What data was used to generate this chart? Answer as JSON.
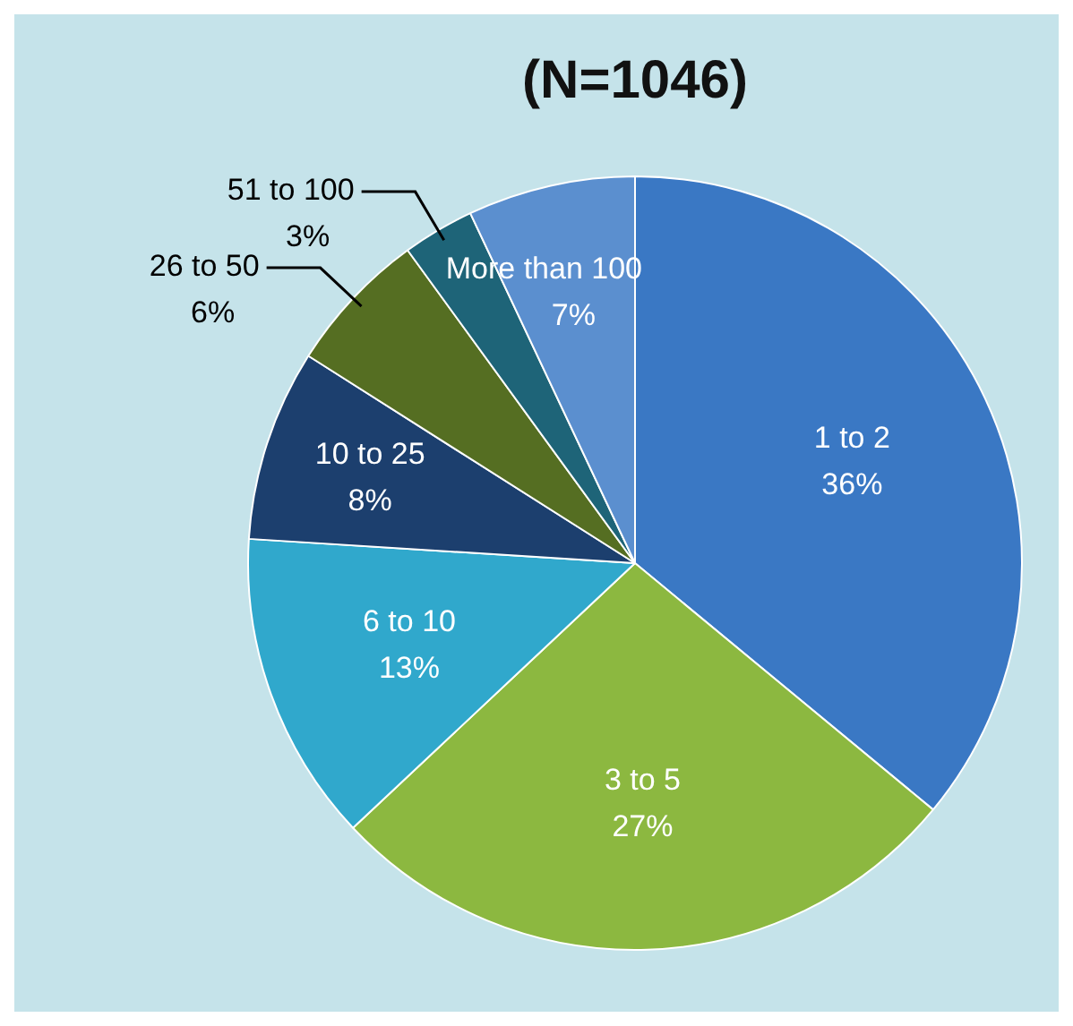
{
  "chart_data": {
    "type": "pie",
    "title": "(N=1046)",
    "categories": [
      "1 to 2",
      "3 to 5",
      "6 to 10",
      "10 to 25",
      "26 to 50",
      "51 to 100",
      "More than 100"
    ],
    "values": [
      36,
      27,
      13,
      8,
      6,
      3,
      7
    ],
    "colors": [
      "#3a78c4",
      "#8cb840",
      "#30a8cc",
      "#1c3f6e",
      "#556e22",
      "#1e6478",
      "#5b8fcf"
    ],
    "value_labels": [
      "36%",
      "27%",
      "13%",
      "8%",
      "6%",
      "3%",
      "7%"
    ],
    "legend": false
  }
}
